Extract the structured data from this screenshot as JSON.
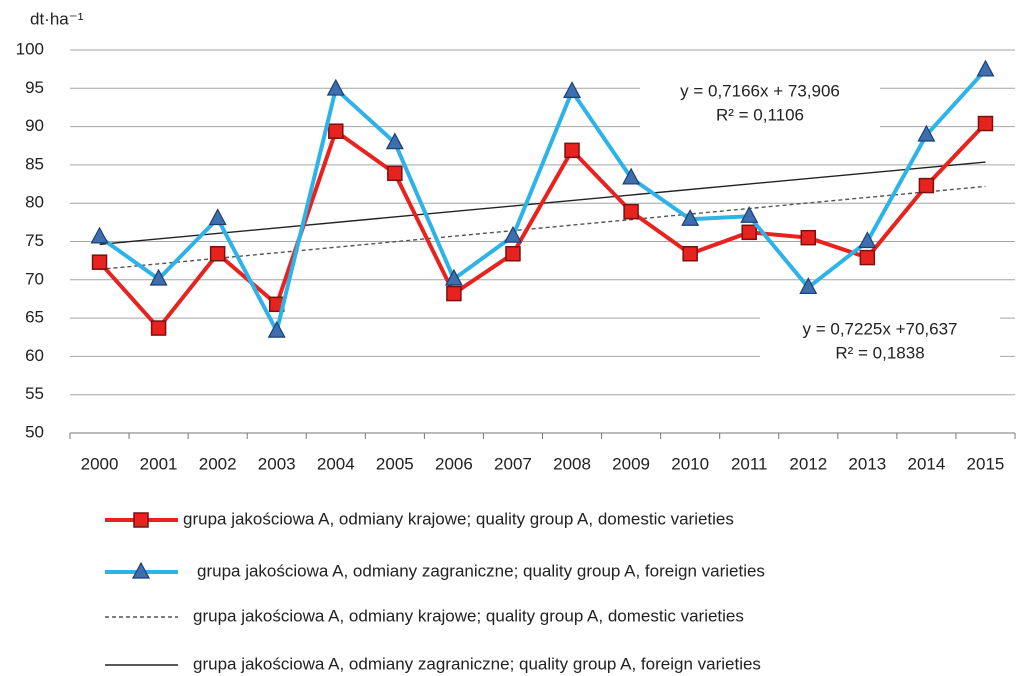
{
  "chart_data": {
    "type": "line",
    "y_unit": "dt·ha⁻¹",
    "categories": [
      "2000",
      "2001",
      "2002",
      "2003",
      "2004",
      "2005",
      "2006",
      "2007",
      "2008",
      "2009",
      "2010",
      "2011",
      "2012",
      "2013",
      "2014",
      "2015"
    ],
    "series": [
      {
        "name": "grupa jakościowa A, odmiany krajowe; quality group A, domestic varieties",
        "color": "#e8231f",
        "marker": "square",
        "values": [
          72.3,
          63.7,
          73.4,
          66.8,
          89.4,
          83.9,
          68.2,
          73.4,
          86.9,
          78.9,
          73.4,
          76.2,
          75.5,
          72.9,
          82.3,
          90.4
        ]
      },
      {
        "name": "grupa jakościowa A, odmiany zagraniczne; quality group A, foreign varieties",
        "color": "#2db3e8",
        "marker": "triangle",
        "values": [
          75.6,
          70.1,
          78.0,
          63.3,
          94.9,
          87.9,
          70.1,
          75.7,
          94.6,
          83.3,
          77.9,
          78.3,
          69.0,
          75.0,
          88.9,
          97.4
        ]
      }
    ],
    "trendlines": [
      {
        "name": "grupa jakościowa A, odmiany krajowe; quality group A, domestic varieties",
        "style": "dashed",
        "color": "#555555",
        "slope": 0.7225,
        "intercept": 70.637,
        "equation": "y = 0,7225x +70,637",
        "r2": "R² = 0,1838"
      },
      {
        "name": "grupa jakościowa A, odmiany zagraniczne; quality group A, foreign varieties",
        "style": "solid",
        "color": "#222222",
        "slope": 0.7166,
        "intercept": 73.906,
        "equation": "y = 0,7166x + 73,906",
        "r2": "R² = 0,1106"
      }
    ],
    "ylim": [
      50,
      100
    ],
    "yticks": [
      50,
      55,
      60,
      65,
      70,
      75,
      80,
      85,
      90,
      95,
      100
    ],
    "grid": true
  }
}
